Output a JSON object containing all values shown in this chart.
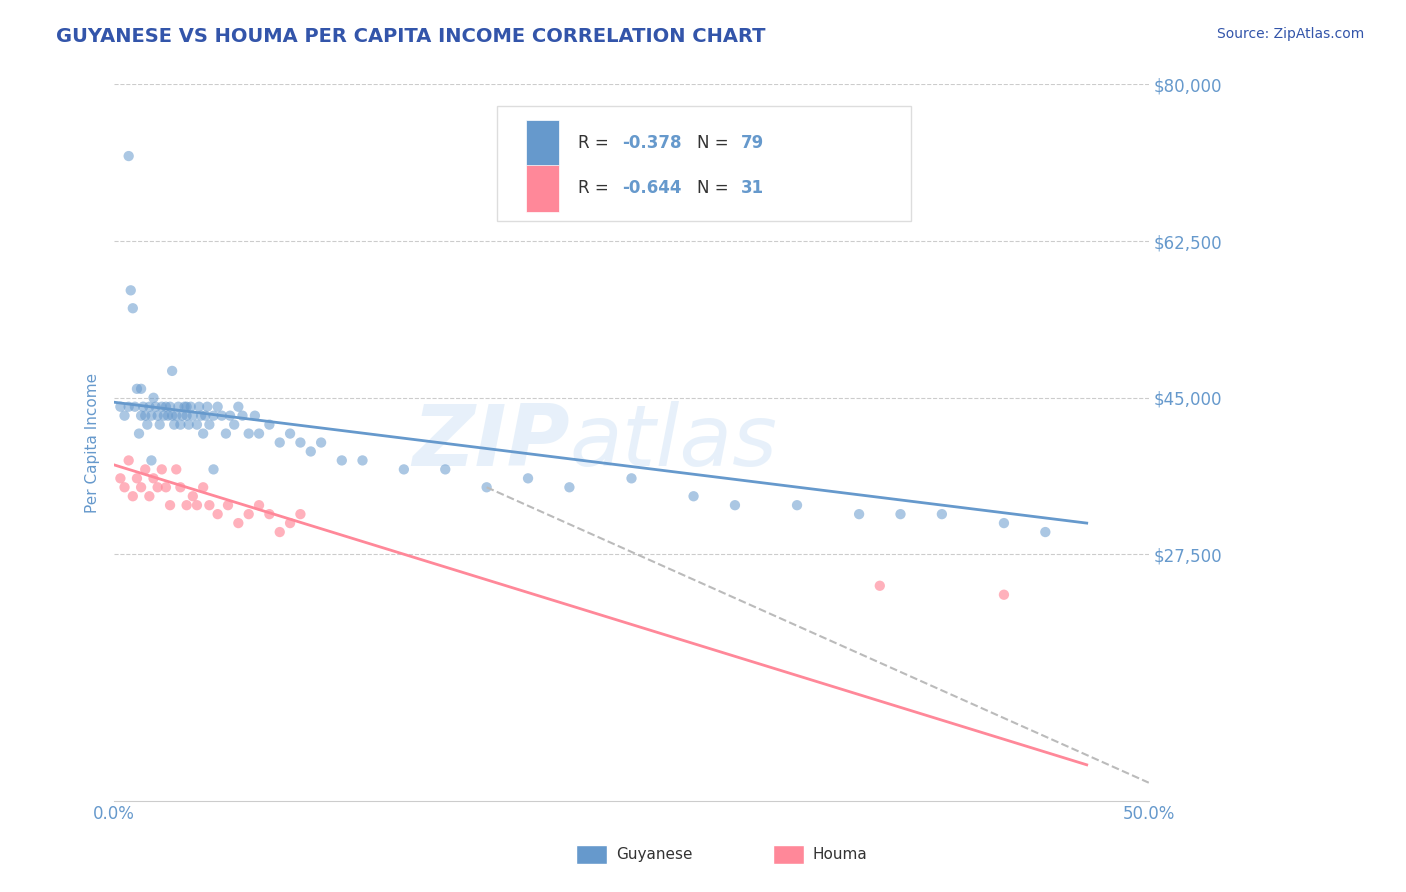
{
  "title": "GUYANESE VS HOUMA PER CAPITA INCOME CORRELATION CHART",
  "source_text": "Source: ZipAtlas.com",
  "ylabel": "Per Capita Income",
  "watermark_zip": "ZIP",
  "watermark_atlas": "atlas",
  "xlim": [
    0.0,
    0.5
  ],
  "ylim": [
    0,
    80000
  ],
  "yticks": [
    0,
    27500,
    45000,
    62500,
    80000
  ],
  "ytick_labels": [
    "",
    "$27,500",
    "$45,000",
    "$62,500",
    "$80,000"
  ],
  "xticks": [
    0.0,
    0.1,
    0.2,
    0.3,
    0.4,
    0.5
  ],
  "xtick_labels": [
    "0.0%",
    "",
    "",
    "",
    "",
    "50.0%"
  ],
  "blue_color": "#6699CC",
  "pink_color": "#FF8899",
  "title_color": "#3355AA",
  "axis_color": "#6699CC",
  "source_color": "#3355AA",
  "legend_label1": "Guyanese",
  "legend_label2": "Houma",
  "blue_scatter_x": [
    0.003,
    0.005,
    0.007,
    0.008,
    0.01,
    0.011,
    0.012,
    0.013,
    0.014,
    0.015,
    0.016,
    0.017,
    0.018,
    0.019,
    0.02,
    0.021,
    0.022,
    0.023,
    0.024,
    0.025,
    0.026,
    0.027,
    0.028,
    0.029,
    0.03,
    0.031,
    0.032,
    0.033,
    0.034,
    0.035,
    0.036,
    0.037,
    0.038,
    0.04,
    0.041,
    0.042,
    0.043,
    0.044,
    0.045,
    0.046,
    0.048,
    0.05,
    0.052,
    0.054,
    0.056,
    0.058,
    0.06,
    0.062,
    0.065,
    0.068,
    0.07,
    0.075,
    0.08,
    0.085,
    0.09,
    0.095,
    0.1,
    0.11,
    0.12,
    0.14,
    0.16,
    0.18,
    0.2,
    0.22,
    0.25,
    0.28,
    0.3,
    0.33,
    0.36,
    0.38,
    0.4,
    0.43,
    0.45,
    0.007,
    0.009,
    0.013,
    0.018,
    0.028,
    0.035,
    0.048
  ],
  "blue_scatter_y": [
    44000,
    43000,
    44000,
    57000,
    44000,
    46000,
    41000,
    43000,
    44000,
    43000,
    42000,
    44000,
    43000,
    45000,
    44000,
    43000,
    42000,
    44000,
    43000,
    44000,
    43000,
    44000,
    43000,
    42000,
    43000,
    44000,
    42000,
    43000,
    44000,
    43000,
    42000,
    44000,
    43000,
    42000,
    44000,
    43000,
    41000,
    43000,
    44000,
    42000,
    43000,
    44000,
    43000,
    41000,
    43000,
    42000,
    44000,
    43000,
    41000,
    43000,
    41000,
    42000,
    40000,
    41000,
    40000,
    39000,
    40000,
    38000,
    38000,
    37000,
    37000,
    35000,
    36000,
    35000,
    36000,
    34000,
    33000,
    33000,
    32000,
    32000,
    32000,
    31000,
    30000,
    72000,
    55000,
    46000,
    38000,
    48000,
    44000,
    37000
  ],
  "pink_scatter_x": [
    0.003,
    0.005,
    0.007,
    0.009,
    0.011,
    0.013,
    0.015,
    0.017,
    0.019,
    0.021,
    0.023,
    0.025,
    0.027,
    0.03,
    0.032,
    0.035,
    0.038,
    0.04,
    0.043,
    0.046,
    0.05,
    0.055,
    0.06,
    0.065,
    0.07,
    0.075,
    0.08,
    0.085,
    0.09,
    0.37,
    0.43
  ],
  "pink_scatter_y": [
    36000,
    35000,
    38000,
    34000,
    36000,
    35000,
    37000,
    34000,
    36000,
    35000,
    37000,
    35000,
    33000,
    37000,
    35000,
    33000,
    34000,
    33000,
    35000,
    33000,
    32000,
    33000,
    31000,
    32000,
    33000,
    32000,
    30000,
    31000,
    32000,
    24000,
    23000
  ],
  "blue_line_x": [
    0.0,
    0.47
  ],
  "blue_line_y": [
    44500,
    31000
  ],
  "pink_line_x": [
    0.0,
    0.47
  ],
  "pink_line_y": [
    37500,
    4000
  ],
  "dashed_line_x": [
    0.18,
    0.5
  ],
  "dashed_line_y": [
    35000,
    2000
  ],
  "grid_color": "#CCCCCC",
  "background_color": "#FFFFFF",
  "legend_box_color": "#EEEEEE"
}
